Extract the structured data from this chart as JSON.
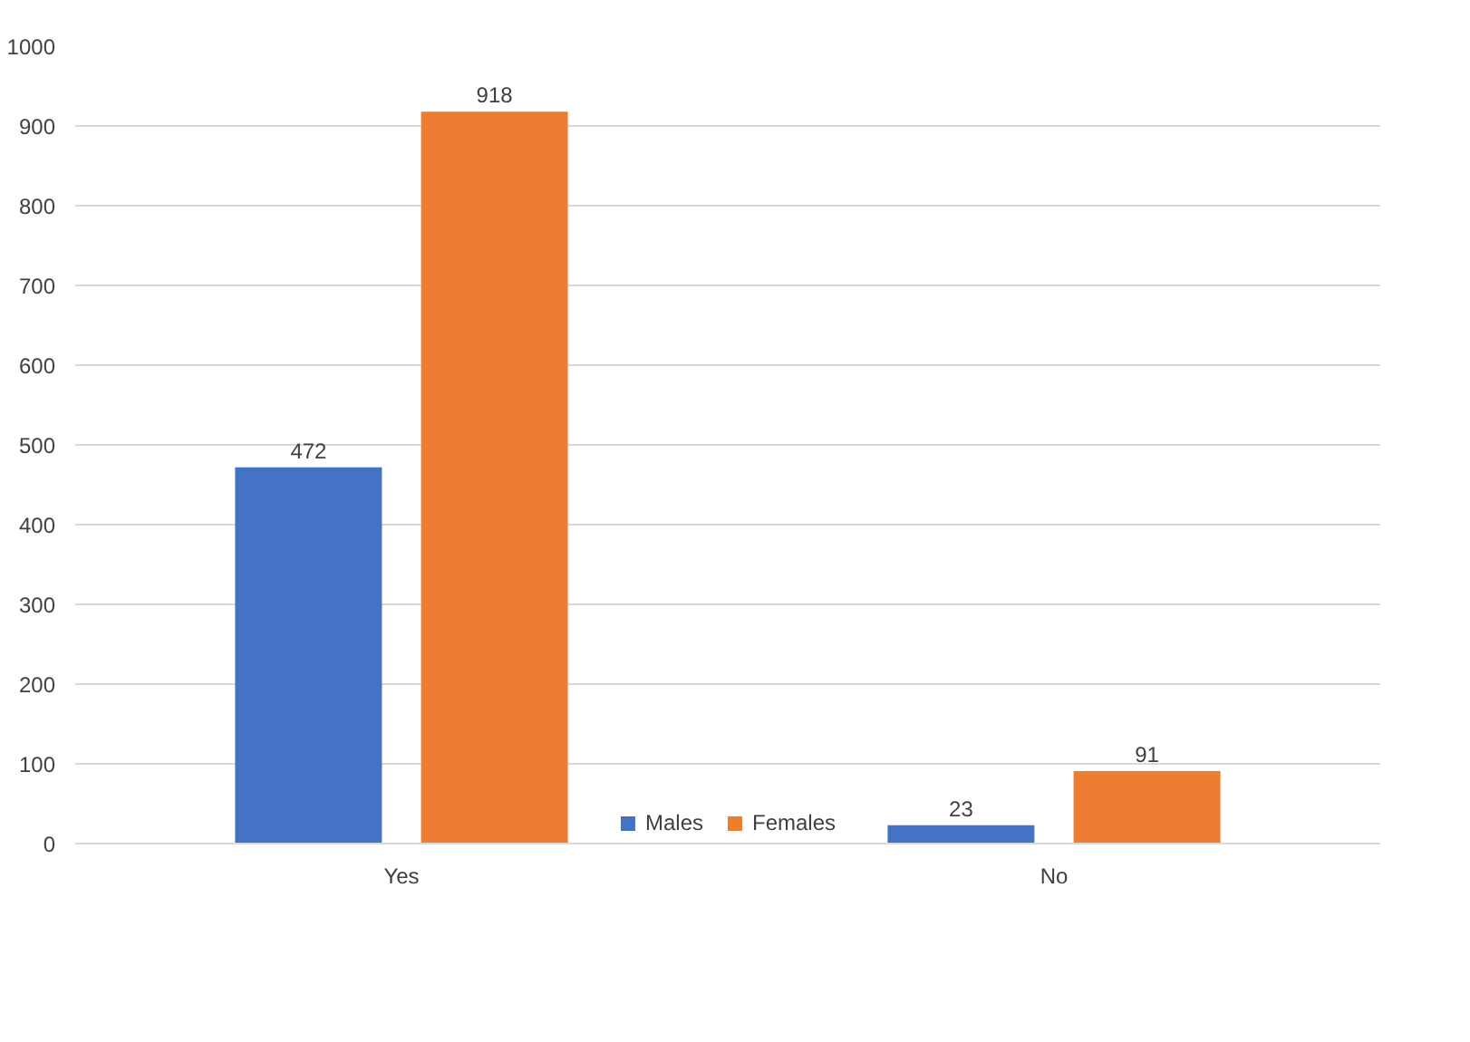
{
  "chart_data": {
    "type": "bar",
    "categories": [
      "Yes",
      "No"
    ],
    "series": [
      {
        "name": "Males",
        "color": "#4472c4",
        "values": [
          472,
          23
        ]
      },
      {
        "name": "Females",
        "color": "#ed7d31",
        "values": [
          918,
          91
        ]
      }
    ],
    "ylim": [
      0,
      1000
    ],
    "yticks": [
      0,
      100,
      200,
      300,
      400,
      500,
      600,
      700,
      800,
      900,
      1000
    ],
    "grid": "y",
    "legend": "bottom",
    "data_labels": true
  }
}
